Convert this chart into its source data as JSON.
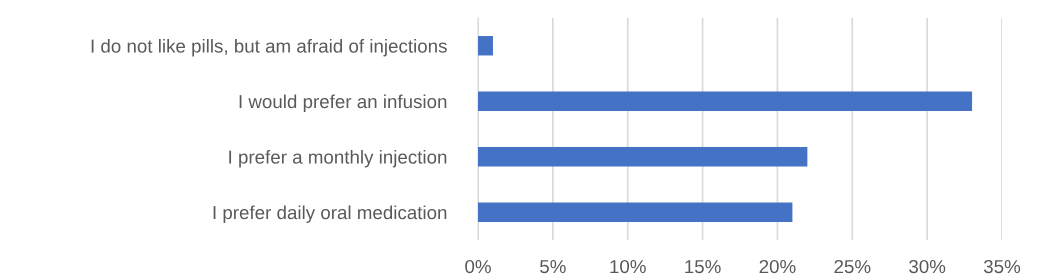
{
  "chart_data": {
    "type": "bar",
    "orientation": "horizontal",
    "categories": [
      "I do not like pills, but am afraid of injections",
      "I would prefer an infusion",
      "I prefer a monthly injection",
      "I prefer daily oral medication"
    ],
    "values": [
      1,
      33,
      22,
      21
    ],
    "color": "#4472c4",
    "xlim": [
      0,
      35
    ],
    "xticks": [
      {
        "value": 0,
        "label": "0%"
      },
      {
        "value": 5,
        "label": "5%"
      },
      {
        "value": 10,
        "label": "10%"
      },
      {
        "value": 15,
        "label": "15%"
      },
      {
        "value": 20,
        "label": "20%"
      },
      {
        "value": 25,
        "label": "25%"
      },
      {
        "value": 30,
        "label": "30%"
      },
      {
        "value": 35,
        "label": "35%"
      }
    ],
    "grid": "x",
    "legend": false
  }
}
